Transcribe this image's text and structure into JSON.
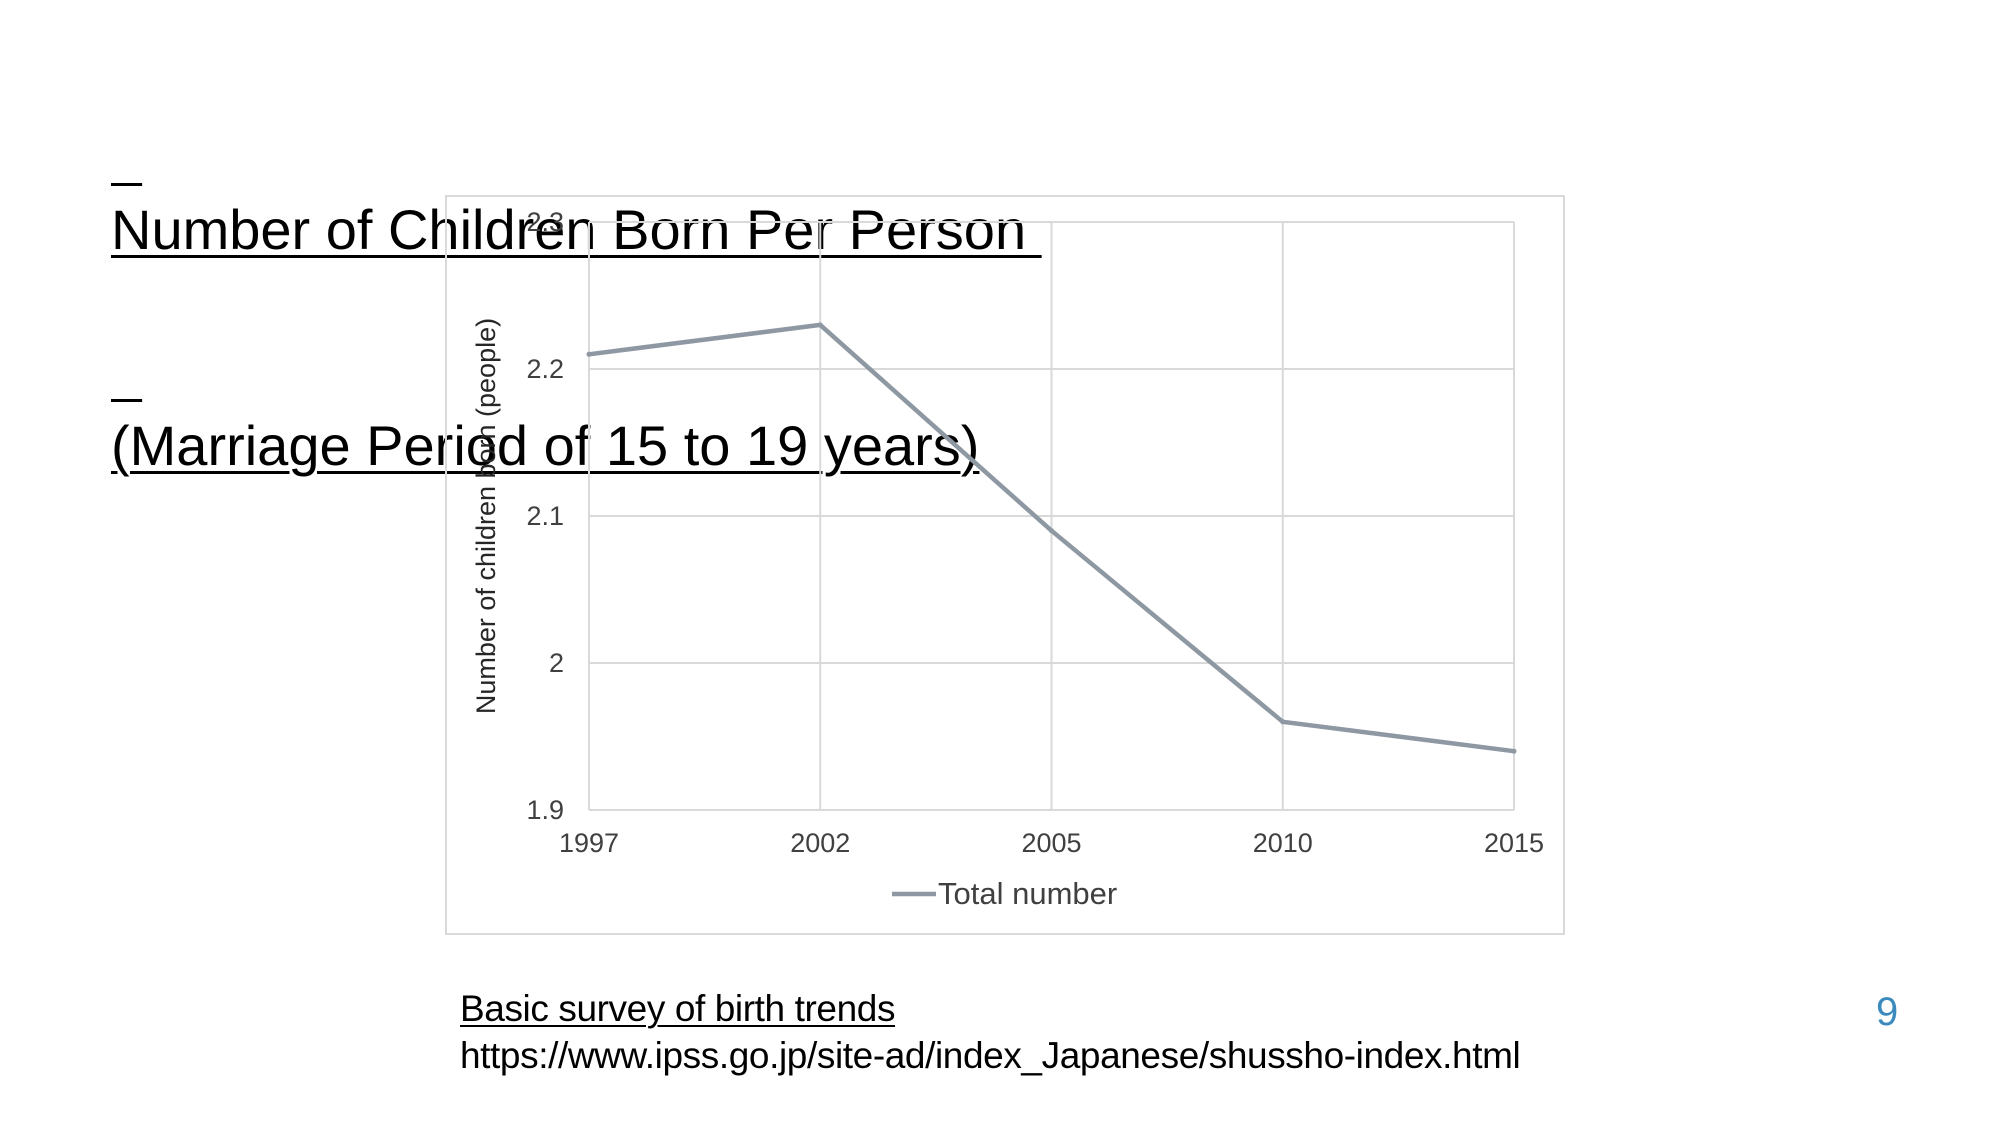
{
  "slide": {
    "title_lines": [
      "Number of Children Born Per Person ",
      "(Marriage Period of 15 to 19 years)"
    ],
    "source_title": "Basic survey of birth trends",
    "source_url": "https://www.ipss.go.jp/site-ad/index_Japanese/shussho-index.html",
    "page_number": "9"
  },
  "colors": {
    "series": "#8e98a3",
    "grid": "#d9d9d9",
    "axis_text": "#404040",
    "page_number": "#3b8abd"
  },
  "chart_data": {
    "type": "line",
    "categories": [
      "1997",
      "2002",
      "2005",
      "2010",
      "2015"
    ],
    "series": [
      {
        "name": "Total number",
        "values": [
          2.21,
          2.23,
          2.09,
          1.96,
          1.94
        ]
      }
    ],
    "ylabel": "Number of children born (people)",
    "xlabel": "",
    "ylim": [
      1.9,
      2.3
    ],
    "yticks": [
      "1.9",
      "2",
      "2.1",
      "2.2",
      "2.3"
    ],
    "grid": true,
    "legend": "bottom"
  }
}
